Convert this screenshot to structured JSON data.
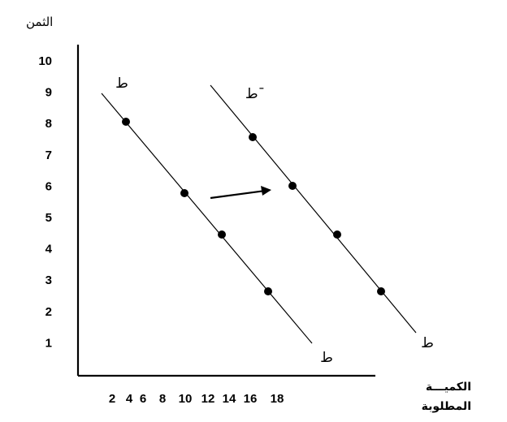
{
  "chart_data": {
    "type": "line",
    "ylabel": "الثمن",
    "xlabel_lines": [
      "الكميـــة",
      "المطلوبة"
    ],
    "x_ticks": [
      2,
      4,
      6,
      8,
      10,
      12,
      14,
      16,
      18
    ],
    "y_ticks": [
      1,
      2,
      3,
      4,
      5,
      6,
      7,
      8,
      9,
      10
    ],
    "series": [
      {
        "name": "ط",
        "end_label": "ط",
        "line": [
          [
            1,
            9
          ],
          [
            11.2,
            0.8
          ]
        ],
        "points": [
          [
            2.6,
            8
          ],
          [
            8.2,
            5.8
          ],
          [
            12,
            4.5
          ],
          [
            16.5,
            2.7
          ]
        ]
      },
      {
        "name": "ط¯",
        "end_label": "ط",
        "line": [
          [
            10.5,
            9.3
          ],
          [
            20.8,
            1
          ]
        ],
        "points": [
          [
            14.9,
            7.6
          ],
          [
            18.5,
            6
          ],
          [
            22.5,
            4.5
          ],
          [
            26.7,
            2.7
          ]
        ]
      }
    ],
    "shift_arrow": {
      "from": [
        9.5,
        5.6
      ],
      "to": [
        14.5,
        6
      ]
    },
    "colors": {
      "line": "#000000",
      "point": "#000000"
    }
  }
}
